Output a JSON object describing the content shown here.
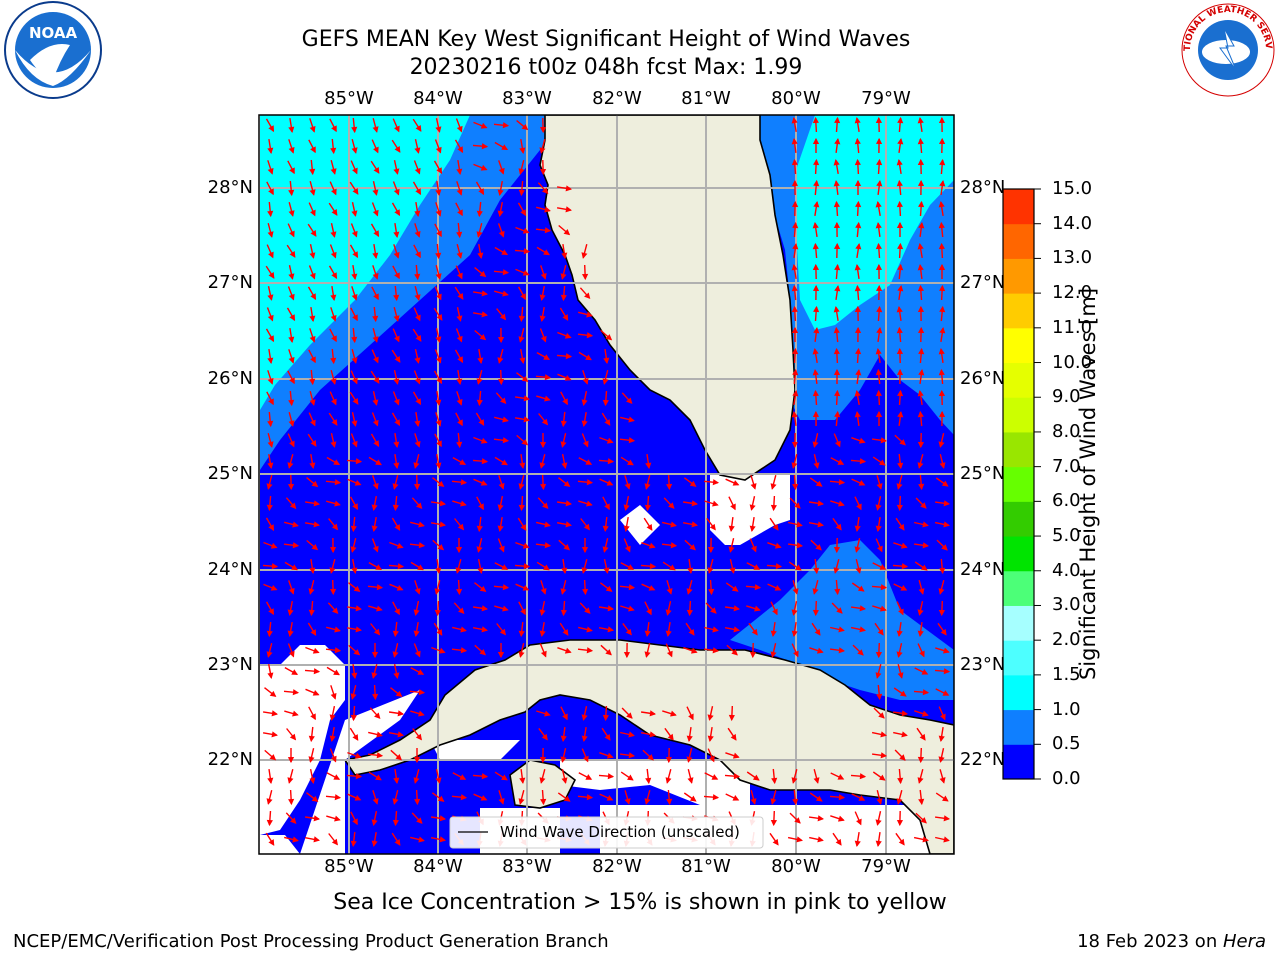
{
  "title": {
    "line1": "GEFS MEAN Key West Significant Height of Wind Waves",
    "line2": "20230216 t00z 048h fcst   Max: 1.99"
  },
  "logos": {
    "left": {
      "icon": "noaa-logo-icon",
      "text": "NOAA"
    },
    "right": {
      "icon": "nws-logo-icon",
      "text": "NATIONAL WEATHER SERVICE"
    }
  },
  "axes": {
    "lon_labels": [
      "85°W",
      "84°W",
      "83°W",
      "82°W",
      "81°W",
      "80°W",
      "79°W"
    ],
    "lat_labels": [
      "28°N",
      "27°N",
      "26°N",
      "25°N",
      "24°N",
      "23°N",
      "22°N"
    ],
    "grid": true
  },
  "legend": {
    "text": "Wind Wave Direction (unscaled)",
    "placement": "bottom-center"
  },
  "colorbar": {
    "label": "Significant Height of Wind Waves [m]",
    "ticks": [
      "0.0",
      "0.5",
      "1.0",
      "1.5",
      "2.0",
      "3.0",
      "4.0",
      "5.0",
      "6.0",
      "7.0",
      "8.0",
      "9.0",
      "10.0",
      "11.0",
      "12.0",
      "13.0",
      "14.0",
      "15.0"
    ],
    "colors": [
      "#0000ff",
      "#0f7fff",
      "#00ffff",
      "#4dffff",
      "#a6ffff",
      "#4cff78",
      "#00e400",
      "#33cc00",
      "#66ff00",
      "#99e600",
      "#ccff00",
      "#e5ff00",
      "#ffff00",
      "#ffcc00",
      "#ff9900",
      "#ff6600",
      "#ff3300",
      "#ff0000"
    ]
  },
  "map": {
    "land_color": "#eeeedd",
    "arrow_color": "#ff0000"
  },
  "sea_ice_note": "Sea Ice Concentration > 15% is shown in pink to yellow",
  "footer": {
    "left": "NCEP/EMC/Verification Post Processing Product Generation Branch",
    "right_prefix": "18 Feb 2023 on ",
    "right_emph": "Hera"
  }
}
